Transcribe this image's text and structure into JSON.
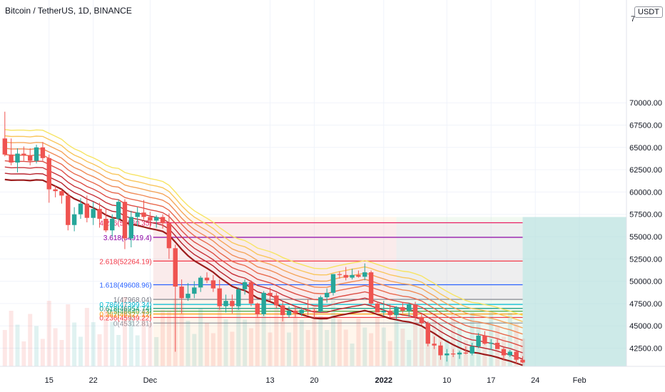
{
  "header": {
    "symbol_title": "Bitcoin / TetherUS, 1D, BINANCE",
    "currency_badge": "USDT"
  },
  "colors": {
    "up": "#26a69a",
    "down": "#ef5350",
    "grid": "#f0f3fa",
    "ribbon": [
      "#f7e463",
      "#f9c65c",
      "#f5a65b",
      "#f08a56",
      "#e96a4e",
      "#dd4d45",
      "#c9333a",
      "#b8232d",
      "#9b1b1b"
    ]
  },
  "chart_data": {
    "type": "candlestick",
    "title": "Bitcoin / TetherUS, 1D, BINANCE",
    "y_axis": {
      "position": "right",
      "ylim": [
        40800,
        73200
      ],
      "tick_labels": [
        "70000.00",
        "67500.00",
        "65000.00",
        "62500.00",
        "60000.00",
        "57500.00",
        "55000.00",
        "52500.00",
        "50000.00",
        "47500.00",
        "45000.00",
        "42500.00"
      ],
      "tick_values": [
        70000,
        67500,
        65000,
        62500,
        60000,
        57500,
        55000,
        52500,
        50000,
        47500,
        45000,
        42500
      ],
      "top_label_partial": "7"
    },
    "x_axis": {
      "tick_labels": [
        "15",
        "22",
        "Dec",
        "13",
        "20",
        "2022",
        "10",
        "17",
        "24",
        "Feb"
      ],
      "tick_bar_index": [
        7,
        14,
        23,
        42,
        49,
        60,
        70,
        77,
        84,
        91
      ]
    },
    "grid": true,
    "candles": [
      {
        "o": 66000,
        "h": 69000,
        "l": 64000,
        "c": 64200
      },
      {
        "o": 64200,
        "h": 66000,
        "l": 63000,
        "c": 63300
      },
      {
        "o": 63300,
        "h": 64900,
        "l": 62200,
        "c": 64300
      },
      {
        "o": 64300,
        "h": 65100,
        "l": 63500,
        "c": 64100
      },
      {
        "o": 64100,
        "h": 64900,
        "l": 63000,
        "c": 63500
      },
      {
        "o": 63500,
        "h": 65300,
        "l": 63200,
        "c": 65000
      },
      {
        "o": 65000,
        "h": 65600,
        "l": 63500,
        "c": 63800
      },
      {
        "o": 63800,
        "h": 64200,
        "l": 58800,
        "c": 60300
      },
      {
        "o": 60300,
        "h": 60700,
        "l": 59400,
        "c": 60100
      },
      {
        "o": 60100,
        "h": 60300,
        "l": 58700,
        "c": 59600
      },
      {
        "o": 59600,
        "h": 59900,
        "l": 55700,
        "c": 56300
      },
      {
        "o": 56300,
        "h": 58300,
        "l": 55600,
        "c": 57500
      },
      {
        "o": 57500,
        "h": 59300,
        "l": 57000,
        "c": 58700
      },
      {
        "o": 58700,
        "h": 59600,
        "l": 56600,
        "c": 57100
      },
      {
        "o": 57100,
        "h": 58900,
        "l": 56300,
        "c": 58100
      },
      {
        "o": 58100,
        "h": 58800,
        "l": 56000,
        "c": 57000
      },
      {
        "o": 57000,
        "h": 58200,
        "l": 55500,
        "c": 55700
      },
      {
        "o": 55700,
        "h": 57500,
        "l": 55000,
        "c": 57000
      },
      {
        "o": 57000,
        "h": 59200,
        "l": 56800,
        "c": 58900
      },
      {
        "o": 58900,
        "h": 59200,
        "l": 53600,
        "c": 54800
      },
      {
        "o": 54800,
        "h": 57900,
        "l": 53800,
        "c": 57200
      },
      {
        "o": 57200,
        "h": 58300,
        "l": 56200,
        "c": 57700
      },
      {
        "o": 57700,
        "h": 59100,
        "l": 56900,
        "c": 57200
      },
      {
        "o": 57200,
        "h": 57800,
        "l": 56000,
        "c": 56800
      },
      {
        "o": 56800,
        "h": 57400,
        "l": 56000,
        "c": 57200
      },
      {
        "o": 57200,
        "h": 57500,
        "l": 55900,
        "c": 56500
      },
      {
        "o": 56500,
        "h": 57600,
        "l": 52500,
        "c": 53700
      },
      {
        "o": 53700,
        "h": 54100,
        "l": 42100,
        "c": 49400
      },
      {
        "o": 49400,
        "h": 50200,
        "l": 46400,
        "c": 48100
      },
      {
        "o": 48100,
        "h": 49800,
        "l": 47800,
        "c": 48600
      },
      {
        "o": 48600,
        "h": 50000,
        "l": 48100,
        "c": 49300
      },
      {
        "o": 49300,
        "h": 50600,
        "l": 48800,
        "c": 50400
      },
      {
        "o": 50400,
        "h": 51000,
        "l": 49800,
        "c": 50100
      },
      {
        "o": 50100,
        "h": 50700,
        "l": 48800,
        "c": 49200
      },
      {
        "o": 49200,
        "h": 50200,
        "l": 46800,
        "c": 47200
      },
      {
        "o": 47200,
        "h": 48500,
        "l": 46500,
        "c": 47800
      },
      {
        "o": 47800,
        "h": 48500,
        "l": 46400,
        "c": 47200
      },
      {
        "o": 47200,
        "h": 49300,
        "l": 46800,
        "c": 49100
      },
      {
        "o": 49100,
        "h": 50200,
        "l": 48500,
        "c": 49900
      },
      {
        "o": 49900,
        "h": 50100,
        "l": 47200,
        "c": 47500
      },
      {
        "o": 47500,
        "h": 47600,
        "l": 46000,
        "c": 46300
      },
      {
        "o": 46300,
        "h": 48900,
        "l": 46100,
        "c": 48700
      },
      {
        "o": 48700,
        "h": 49300,
        "l": 47800,
        "c": 48400
      },
      {
        "o": 48400,
        "h": 48700,
        "l": 47000,
        "c": 47300
      },
      {
        "o": 47300,
        "h": 47700,
        "l": 45500,
        "c": 46200
      },
      {
        "o": 46200,
        "h": 47200,
        "l": 45900,
        "c": 46700
      },
      {
        "o": 46700,
        "h": 47300,
        "l": 46000,
        "c": 46400
      },
      {
        "o": 46400,
        "h": 47100,
        "l": 46100,
        "c": 46800
      },
      {
        "o": 46800,
        "h": 48000,
        "l": 46200,
        "c": 46700
      },
      {
        "o": 46700,
        "h": 47000,
        "l": 45900,
        "c": 46600
      },
      {
        "o": 46600,
        "h": 48400,
        "l": 46500,
        "c": 48200
      },
      {
        "o": 48200,
        "h": 49200,
        "l": 47600,
        "c": 48700
      },
      {
        "o": 48700,
        "h": 50800,
        "l": 48400,
        "c": 50800
      },
      {
        "o": 50800,
        "h": 51100,
        "l": 50300,
        "c": 50700
      },
      {
        "o": 50700,
        "h": 51600,
        "l": 50100,
        "c": 50400
      },
      {
        "o": 50400,
        "h": 51400,
        "l": 50200,
        "c": 50700
      },
      {
        "o": 50700,
        "h": 51200,
        "l": 50400,
        "c": 50500
      },
      {
        "o": 50500,
        "h": 52000,
        "l": 50100,
        "c": 51000
      },
      {
        "o": 51000,
        "h": 51200,
        "l": 47300,
        "c": 47500
      },
      {
        "o": 47500,
        "h": 47700,
        "l": 46500,
        "c": 46500
      },
      {
        "o": 46500,
        "h": 47800,
        "l": 46100,
        "c": 46700
      },
      {
        "o": 46700,
        "h": 47400,
        "l": 45900,
        "c": 46200
      },
      {
        "o": 46200,
        "h": 47200,
        "l": 45800,
        "c": 47100
      },
      {
        "o": 47100,
        "h": 47600,
        "l": 46400,
        "c": 46700
      },
      {
        "o": 46700,
        "h": 47600,
        "l": 46000,
        "c": 47400
      },
      {
        "o": 47400,
        "h": 47700,
        "l": 45600,
        "c": 46000
      },
      {
        "o": 46000,
        "h": 46400,
        "l": 45100,
        "c": 45300
      },
      {
        "o": 45300,
        "h": 45500,
        "l": 42700,
        "c": 43000
      },
      {
        "o": 43000,
        "h": 43800,
        "l": 42400,
        "c": 42800
      },
      {
        "o": 42800,
        "h": 43200,
        "l": 41200,
        "c": 41700
      },
      {
        "o": 41700,
        "h": 42400,
        "l": 41000,
        "c": 41900
      },
      {
        "o": 41900,
        "h": 42400,
        "l": 41500,
        "c": 41800
      },
      {
        "o": 41800,
        "h": 42200,
        "l": 41300,
        "c": 42000
      },
      {
        "o": 42000,
        "h": 42700,
        "l": 41800,
        "c": 41900
      },
      {
        "o": 41900,
        "h": 43100,
        "l": 41700,
        "c": 42700
      },
      {
        "o": 42700,
        "h": 44200,
        "l": 42500,
        "c": 43900
      },
      {
        "o": 43900,
        "h": 44400,
        "l": 42900,
        "c": 43000
      },
      {
        "o": 43000,
        "h": 43500,
        "l": 42300,
        "c": 43100
      },
      {
        "o": 43100,
        "h": 43500,
        "l": 42600,
        "c": 42400
      },
      {
        "o": 42400,
        "h": 42600,
        "l": 41100,
        "c": 41700
      },
      {
        "o": 41700,
        "h": 42300,
        "l": 41500,
        "c": 42100
      },
      {
        "o": 42100,
        "h": 42200,
        "l": 40800,
        "c": 41200
      },
      {
        "o": 41200,
        "h": 41600,
        "l": 40800,
        "c": 40900
      }
    ],
    "ema_ribbon_offsets": [
      0,
      700,
      1400,
      2100,
      2800,
      3500,
      4200,
      4900,
      5600
    ],
    "fib_retracement": {
      "levels": [
        {
          "label": "0(45312.81)",
          "price": 45312.81,
          "color": "#9598a1"
        },
        {
          "label": "0.236(45939.22)",
          "price": 45939.22,
          "color": "#f23645"
        },
        {
          "label": "0.382(46327.12)",
          "price": 46327.12,
          "color": "#ff9800"
        },
        {
          "label": "0.5(46640.43)",
          "price": 46640.43,
          "color": "#4caf50"
        },
        {
          "label": "0.618(46954.74)",
          "price": 46954.74,
          "color": "#089981"
        },
        {
          "label": "0.786(47399.34)",
          "price": 47399.34,
          "color": "#00bcd4"
        },
        {
          "label": "1(47968.04)",
          "price": 47968.04,
          "color": "#787b86"
        },
        {
          "label": "1.618(49608.96)",
          "price": 49608.96,
          "color": "#2962ff"
        },
        {
          "label": "2.618(52264.19)",
          "price": 52264.19,
          "color": "#f23645"
        },
        {
          "label": "3.618(54919.4)",
          "price": 54919.4,
          "color": "#9c27b0"
        },
        {
          "label": "4.236(56560.35)",
          "price": 56560.35,
          "color": "#e91e63"
        },
        {
          "label": "3.618(54919.4)",
          "price": 54919.4,
          "color": "#9c27b0"
        }
      ]
    },
    "projection_box": {
      "top_price": 57200,
      "bottom_price": 40800
    }
  }
}
